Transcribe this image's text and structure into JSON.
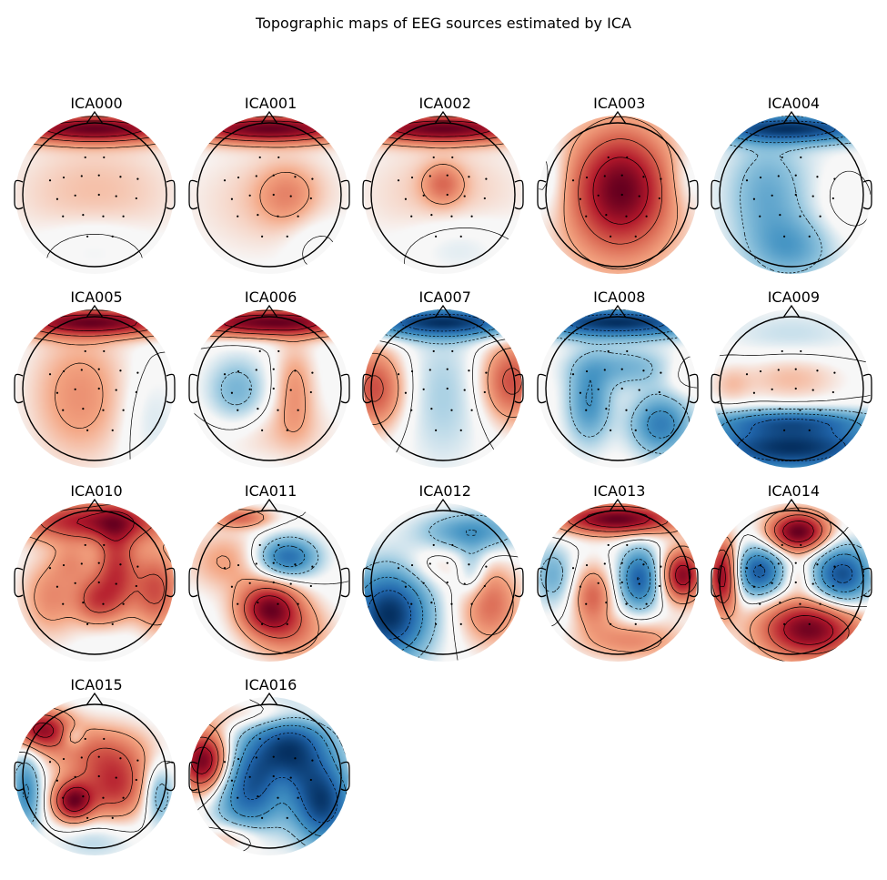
{
  "figure": {
    "title": "Topographic maps of EEG sources estimated by ICA"
  },
  "chart_data": {
    "type": "heatmap",
    "title": "Topographic maps of EEG sources estimated by ICA",
    "colormap": "RdBu_r",
    "colors": {
      "positive": "#67001f",
      "neutral": "#f7f7f7",
      "negative": "#053061"
    },
    "layout": {
      "columns": 5,
      "rows": 4
    },
    "components": [
      {
        "name": "ICA000",
        "blobs": [
          [
            0,
            0.92,
            1.0,
            0.9,
            0.14
          ],
          [
            0,
            0.0,
            0.2,
            0.9,
            0.6
          ],
          [
            0,
            -0.7,
            -0.15,
            0.5,
            0.3
          ]
        ]
      },
      {
        "name": "ICA001",
        "blobs": [
          [
            0,
            0.92,
            1.0,
            0.9,
            0.14
          ],
          [
            0.25,
            0.0,
            0.25,
            0.3,
            0.3
          ],
          [
            0,
            -0.1,
            0.15,
            0.9,
            0.6
          ],
          [
            0.6,
            -0.6,
            -0.1,
            0.3,
            0.3
          ]
        ]
      },
      {
        "name": "ICA002",
        "blobs": [
          [
            0,
            0.92,
            0.9,
            0.9,
            0.14
          ],
          [
            0,
            0.15,
            0.3,
            0.2,
            0.2
          ],
          [
            0,
            0.0,
            0.15,
            0.9,
            0.6
          ],
          [
            0.2,
            -0.7,
            -0.15,
            0.5,
            0.3
          ]
        ]
      },
      {
        "name": "ICA003",
        "blobs": [
          [
            0.05,
            0.1,
            1.0,
            0.45,
            0.55
          ],
          [
            0,
            -0.1,
            0.5,
            0.7,
            0.8
          ],
          [
            -0.95,
            0.2,
            -0.25,
            0.2,
            0.4
          ],
          [
            0.95,
            0.2,
            -0.2,
            0.2,
            0.3
          ]
        ]
      },
      {
        "name": "ICA004",
        "blobs": [
          [
            0,
            0.92,
            -0.8,
            0.9,
            0.14
          ],
          [
            -0.35,
            0.0,
            -0.25,
            0.35,
            0.5
          ],
          [
            0,
            -0.75,
            -0.3,
            0.4,
            0.3
          ],
          [
            0.7,
            -0.1,
            0.12,
            0.3,
            0.4
          ],
          [
            0,
            0.0,
            -0.1,
            0.9,
            0.9
          ]
        ]
      },
      {
        "name": "ICA005",
        "blobs": [
          [
            0,
            0.92,
            1.0,
            0.9,
            0.14
          ],
          [
            -0.2,
            -0.1,
            0.35,
            0.5,
            0.65
          ],
          [
            0.75,
            -0.4,
            -0.15,
            0.3,
            0.5
          ]
        ]
      },
      {
        "name": "ICA006",
        "blobs": [
          [
            0,
            0.92,
            1.0,
            0.9,
            0.14
          ],
          [
            -0.45,
            -0.05,
            -0.35,
            0.3,
            0.35
          ],
          [
            0.35,
            0.0,
            0.3,
            0.2,
            0.45
          ],
          [
            0,
            -0.6,
            0.15,
            0.7,
            0.3
          ]
        ]
      },
      {
        "name": "ICA007",
        "blobs": [
          [
            0,
            0.92,
            -0.9,
            0.9,
            0.15
          ],
          [
            -0.95,
            0.0,
            0.55,
            0.3,
            0.4
          ],
          [
            0.95,
            0.1,
            0.55,
            0.3,
            0.4
          ],
          [
            0,
            -0.1,
            -0.2,
            0.4,
            0.7
          ]
        ]
      },
      {
        "name": "ICA008",
        "blobs": [
          [
            0,
            0.92,
            -0.9,
            0.9,
            0.15
          ],
          [
            -0.4,
            -0.2,
            -0.45,
            0.22,
            0.4
          ],
          [
            0.6,
            -0.5,
            -0.55,
            0.3,
            0.3
          ],
          [
            0.1,
            0.3,
            -0.3,
            0.5,
            0.2
          ],
          [
            0.9,
            0.2,
            0.12,
            0.2,
            0.2
          ]
        ]
      },
      {
        "name": "ICA009",
        "blobs": [
          [
            0,
            -0.82,
            -1.0,
            1.0,
            0.25
          ],
          [
            0,
            -0.45,
            -0.5,
            0.8,
            0.12
          ],
          [
            0,
            0.15,
            0.2,
            0.5,
            0.25
          ],
          [
            -0.85,
            0.05,
            0.15,
            0.2,
            0.2
          ],
          [
            0,
            0.75,
            -0.15,
            0.7,
            0.25
          ]
        ]
      },
      {
        "name": "ICA010",
        "blobs": [
          [
            0,
            0.85,
            0.9,
            0.8,
            0.2
          ],
          [
            0.3,
            0.2,
            0.7,
            0.2,
            0.5
          ],
          [
            0.85,
            -0.1,
            0.65,
            0.25,
            0.4
          ],
          [
            0,
            -0.25,
            0.55,
            0.2,
            0.25
          ],
          [
            -0.3,
            0.3,
            0.25,
            0.2,
            0.2
          ],
          [
            -0.6,
            -0.2,
            0.4,
            0.3,
            0.4
          ],
          [
            0.3,
            -0.7,
            -0.1,
            0.3,
            0.2
          ]
        ]
      },
      {
        "name": "ICA011",
        "blobs": [
          [
            0.25,
            0.35,
            -0.8,
            0.3,
            0.2
          ],
          [
            0,
            -0.35,
            0.95,
            0.3,
            0.25
          ],
          [
            -0.6,
            0.3,
            0.3,
            0.4,
            0.3
          ],
          [
            0.3,
            -0.7,
            0.4,
            0.4,
            0.3
          ],
          [
            -0.4,
            0.9,
            0.5,
            0.3,
            0.1
          ]
        ]
      },
      {
        "name": "ICA012",
        "blobs": [
          [
            -0.75,
            -0.45,
            -1.0,
            0.4,
            0.45
          ],
          [
            0.4,
            0.7,
            -0.5,
            0.5,
            0.2
          ],
          [
            0.65,
            -0.3,
            0.45,
            0.3,
            0.4
          ],
          [
            -0.1,
            0.25,
            0.15,
            0.3,
            0.2
          ],
          [
            0.4,
            0.15,
            -0.3,
            0.15,
            0.25
          ]
        ]
      },
      {
        "name": "ICA013",
        "blobs": [
          [
            0,
            0.88,
            0.85,
            0.6,
            0.15
          ],
          [
            0.3,
            0.05,
            -0.65,
            0.2,
            0.3
          ],
          [
            -0.35,
            -0.2,
            0.4,
            0.2,
            0.3
          ],
          [
            0.9,
            0.1,
            0.75,
            0.2,
            0.25
          ],
          [
            -0.9,
            0.1,
            -0.3,
            0.2,
            0.3
          ],
          [
            0.2,
            -0.8,
            0.3,
            0.5,
            0.2
          ]
        ]
      },
      {
        "name": "ICA014",
        "blobs": [
          [
            0.1,
            0.7,
            1.0,
            0.3,
            0.2
          ],
          [
            0.25,
            -0.65,
            0.95,
            0.5,
            0.3
          ],
          [
            -0.95,
            0.1,
            0.9,
            0.15,
            0.35
          ],
          [
            -0.45,
            0.15,
            -0.8,
            0.25,
            0.25
          ],
          [
            0.7,
            0.1,
            -0.85,
            0.3,
            0.3
          ],
          [
            0.1,
            0.1,
            0.2,
            0.15,
            0.15
          ]
        ]
      },
      {
        "name": "ICA015",
        "blobs": [
          [
            -0.3,
            -0.35,
            1.0,
            0.2,
            0.2
          ],
          [
            -0.75,
            0.65,
            0.9,
            0.3,
            0.2
          ],
          [
            -0.3,
            0.55,
            -0.3,
            0.12,
            0.12
          ],
          [
            0.3,
            -0.2,
            0.6,
            0.3,
            0.3
          ],
          [
            0.1,
            0.3,
            0.5,
            0.5,
            0.3
          ],
          [
            -0.95,
            -0.2,
            -0.6,
            0.15,
            0.4
          ],
          [
            0.9,
            -0.25,
            -0.45,
            0.15,
            0.3
          ],
          [
            0,
            -0.9,
            -0.2,
            0.4,
            0.2
          ]
        ]
      },
      {
        "name": "ICA016",
        "blobs": [
          [
            -0.9,
            0.2,
            1.0,
            0.25,
            0.3
          ],
          [
            0.3,
            0.4,
            -0.85,
            0.4,
            0.4
          ],
          [
            0.75,
            -0.4,
            -0.85,
            0.3,
            0.4
          ],
          [
            -0.3,
            -0.2,
            -0.7,
            0.35,
            0.45
          ],
          [
            0.15,
            -0.1,
            0.1,
            0.15,
            0.2
          ],
          [
            0.1,
            0.85,
            0.3,
            0.6,
            0.15
          ],
          [
            -0.5,
            -0.85,
            0.3,
            0.3,
            0.15
          ]
        ]
      }
    ]
  }
}
